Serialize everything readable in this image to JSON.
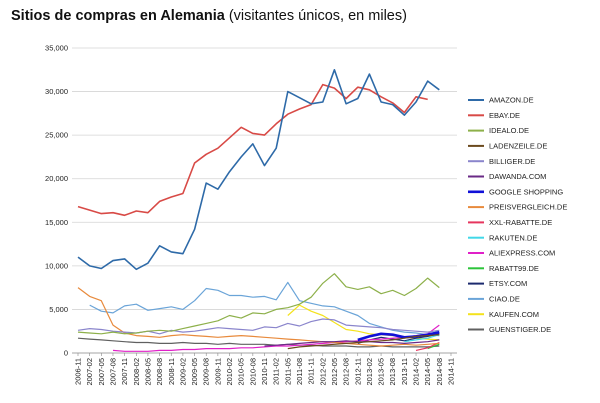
{
  "chart_data": {
    "type": "line",
    "title": "Sitios de compras en Alemania",
    "subtitle": "(visitantes únicos, en miles)",
    "xlabel": "",
    "ylabel": "",
    "ylim": [
      0,
      35000
    ],
    "yticks": [
      "0",
      "5,000",
      "10,000",
      "15,000",
      "20,000",
      "25,000",
      "30,000",
      "35,000"
    ],
    "x": [
      "2006-11",
      "2007-02",
      "2007-05",
      "2007-08",
      "2007-11",
      "2008-02",
      "2008-05",
      "2008-08",
      "2008-11",
      "2009-02",
      "2009-05",
      "2009-08",
      "2009-11",
      "2010-02",
      "2010-05",
      "2010-08",
      "2010-11",
      "2011-02",
      "2011-05",
      "2011-08",
      "2011-11",
      "2012-02",
      "2012-05",
      "2012-08",
      "2012-11",
      "2013-02",
      "2013-05",
      "2013-08",
      "2013-11",
      "2014-02",
      "2014-05",
      "2014-08",
      "2014-11"
    ],
    "xtick_labels": [
      "2006-11",
      "2007-02",
      "2007-05",
      "2007-08",
      "2007-11",
      "2008-02",
      "2008-05",
      "2008-08",
      "2008-11",
      "2009-02",
      "2009-05",
      "2009-08",
      "2009-11",
      "2010-02",
      "2010-05",
      "2010-08",
      "2010-11",
      "2011-02",
      "2011-05",
      "2011-08",
      "2011-11",
      "2012-02",
      "2012-05",
      "2012-08",
      "2012-11",
      "2013-02",
      "2013-05",
      "2013-08",
      "2013-11",
      "2014-02",
      "2014-05",
      "2014-08",
      "2014-11"
    ],
    "grid": "horizontal",
    "legend_position": "right",
    "series": [
      {
        "name": "AMAZON.DE",
        "color": "#2e6aa8",
        "width": 1.6,
        "values": [
          11000,
          10000,
          9700,
          10600,
          10800,
          9600,
          10300,
          12300,
          11600,
          11400,
          14200,
          19500,
          18800,
          20800,
          22500,
          24000,
          21500,
          23500,
          30000,
          29300,
          28600,
          28800,
          32500,
          28600,
          29200,
          32000,
          28800,
          28500,
          27300,
          28800,
          31200,
          30200,
          null
        ]
      },
      {
        "name": "EBAY.DE",
        "color": "#d84a46",
        "width": 1.6,
        "values": [
          16800,
          16400,
          16000,
          16100,
          15800,
          16300,
          16100,
          17400,
          17900,
          18300,
          21800,
          22800,
          23500,
          24700,
          25900,
          25200,
          25000,
          26300,
          27400,
          28000,
          28500,
          30800,
          30400,
          29200,
          30500,
          30200,
          29400,
          28700,
          27600,
          29400,
          29100,
          null,
          null
        ]
      },
      {
        "name": "IDEALO.DE",
        "color": "#8db04a",
        "width": 1.2,
        "values": [
          2400,
          2300,
          2200,
          2400,
          2200,
          2300,
          2500,
          2600,
          2500,
          2800,
          3100,
          3400,
          3700,
          4300,
          4000,
          4600,
          4500,
          5000,
          5200,
          5600,
          6400,
          8000,
          9100,
          7600,
          7300,
          7600,
          6800,
          7200,
          6600,
          7400,
          8600,
          7500,
          null
        ]
      },
      {
        "name": "LADENZEILE.DE",
        "color": "#6b4a1e",
        "width": 1.2,
        "values": [
          null,
          null,
          null,
          null,
          null,
          null,
          null,
          null,
          null,
          null,
          null,
          null,
          null,
          null,
          null,
          null,
          null,
          null,
          500,
          700,
          800,
          900,
          1000,
          1100,
          1200,
          1300,
          1400,
          1500,
          1700,
          1900,
          2000,
          2100,
          null
        ]
      },
      {
        "name": "BILLIGER.DE",
        "color": "#8a85cc",
        "width": 1.2,
        "values": [
          2600,
          2800,
          2700,
          2500,
          2400,
          2300,
          2500,
          2200,
          2600,
          2400,
          2500,
          2700,
          2900,
          2800,
          2700,
          2600,
          3000,
          2900,
          3400,
          3100,
          3600,
          3900,
          3800,
          3200,
          3100,
          3000,
          2900,
          2700,
          2600,
          2500,
          2400,
          2600,
          null
        ]
      },
      {
        "name": "DAWANDA.COM",
        "color": "#6a2a86",
        "width": 1.2,
        "values": [
          null,
          null,
          null,
          null,
          null,
          null,
          null,
          null,
          null,
          null,
          null,
          null,
          null,
          null,
          null,
          null,
          800,
          900,
          1000,
          1100,
          1200,
          1300,
          1300,
          1400,
          1300,
          1300,
          1200,
          1200,
          1100,
          1200,
          1300,
          1500,
          null
        ]
      },
      {
        "name": "GOOGLE SHOPPING",
        "color": "#1010d8",
        "width": 2.6,
        "values": [
          null,
          null,
          null,
          null,
          null,
          null,
          null,
          null,
          null,
          null,
          null,
          null,
          null,
          null,
          null,
          null,
          null,
          null,
          null,
          null,
          null,
          null,
          null,
          null,
          1500,
          1900,
          2200,
          2100,
          1800,
          1900,
          2100,
          2400,
          null
        ]
      },
      {
        "name": "PREISVERGLEICH.DE",
        "color": "#e88a3c",
        "width": 1.2,
        "values": [
          7500,
          6500,
          6000,
          3200,
          2300,
          2000,
          1900,
          1800,
          2000,
          2100,
          2000,
          1900,
          1800,
          1900,
          2000,
          1900,
          1800,
          1700,
          1600,
          1500,
          1400,
          1300,
          1200,
          1100,
          1000,
          900,
          800,
          900,
          1000,
          900,
          1000,
          1100,
          null
        ]
      },
      {
        "name": "XXL-RABATTE.DE",
        "color": "#e6355e",
        "width": 1.2,
        "values": [
          null,
          null,
          null,
          null,
          null,
          null,
          null,
          null,
          null,
          null,
          null,
          null,
          null,
          null,
          null,
          null,
          null,
          null,
          null,
          null,
          null,
          null,
          null,
          null,
          null,
          null,
          null,
          null,
          null,
          300,
          600,
          1200,
          null
        ]
      },
      {
        "name": "RAKUTEN.DE",
        "color": "#41d8e8",
        "width": 1.2,
        "values": [
          null,
          null,
          null,
          null,
          null,
          null,
          null,
          null,
          null,
          null,
          null,
          null,
          null,
          null,
          null,
          null,
          null,
          null,
          null,
          null,
          null,
          null,
          null,
          null,
          null,
          null,
          null,
          null,
          1300,
          1500,
          1700,
          2100,
          null
        ]
      },
      {
        "name": "ALIEXPRESS.COM",
        "color": "#e020c8",
        "width": 1.2,
        "values": [
          null,
          null,
          null,
          300,
          200,
          200,
          200,
          300,
          300,
          400,
          400,
          500,
          500,
          500,
          600,
          600,
          700,
          800,
          800,
          900,
          1000,
          1100,
          1200,
          1300,
          1400,
          1500,
          1600,
          1700,
          1800,
          2000,
          2200,
          3200,
          null
        ]
      },
      {
        "name": "RABATT99.DE",
        "color": "#2cc43a",
        "width": 1.2,
        "values": [
          null,
          null,
          null,
          null,
          null,
          null,
          null,
          null,
          null,
          null,
          null,
          null,
          null,
          null,
          null,
          null,
          null,
          null,
          null,
          null,
          null,
          null,
          null,
          null,
          null,
          null,
          null,
          null,
          null,
          null,
          500,
          1000,
          null
        ]
      },
      {
        "name": "ETSY.COM",
        "color": "#1c2a6e",
        "width": 1.2,
        "values": [
          null,
          null,
          null,
          null,
          null,
          null,
          null,
          null,
          null,
          null,
          null,
          null,
          null,
          null,
          null,
          null,
          null,
          null,
          null,
          null,
          null,
          null,
          null,
          null,
          1100,
          1500,
          1800,
          1600,
          1400,
          1700,
          1900,
          2200,
          null
        ]
      },
      {
        "name": "CIAO.DE",
        "color": "#6aa4d8",
        "width": 1.2,
        "values": [
          null,
          5500,
          4800,
          4600,
          5400,
          5600,
          4900,
          5100,
          5300,
          5000,
          6000,
          7400,
          7200,
          6600,
          6600,
          6400,
          6500,
          6100,
          8100,
          6000,
          5700,
          5400,
          5300,
          4800,
          4300,
          3400,
          3000,
          2600,
          2400,
          2300,
          2100,
          2000,
          null
        ]
      },
      {
        "name": "KAUFEN.COM",
        "color": "#f4e21c",
        "width": 1.2,
        "values": [
          null,
          null,
          null,
          null,
          null,
          null,
          null,
          null,
          null,
          null,
          null,
          null,
          null,
          null,
          null,
          null,
          null,
          null,
          4300,
          5500,
          4800,
          4300,
          3500,
          2700,
          2500,
          2200,
          2100,
          2000,
          1800,
          1700,
          1600,
          1500,
          null
        ]
      },
      {
        "name": "GUENSTIGER.DE",
        "color": "#606060",
        "width": 1.2,
        "values": [
          1700,
          1600,
          1500,
          1400,
          1300,
          1200,
          1200,
          1100,
          1100,
          1200,
          1100,
          1100,
          1000,
          1100,
          1000,
          1000,
          1000,
          900,
          1000,
          900,
          900,
          800,
          800,
          800,
          700,
          700,
          800,
          700,
          700,
          700,
          700,
          800,
          null
        ]
      }
    ]
  }
}
